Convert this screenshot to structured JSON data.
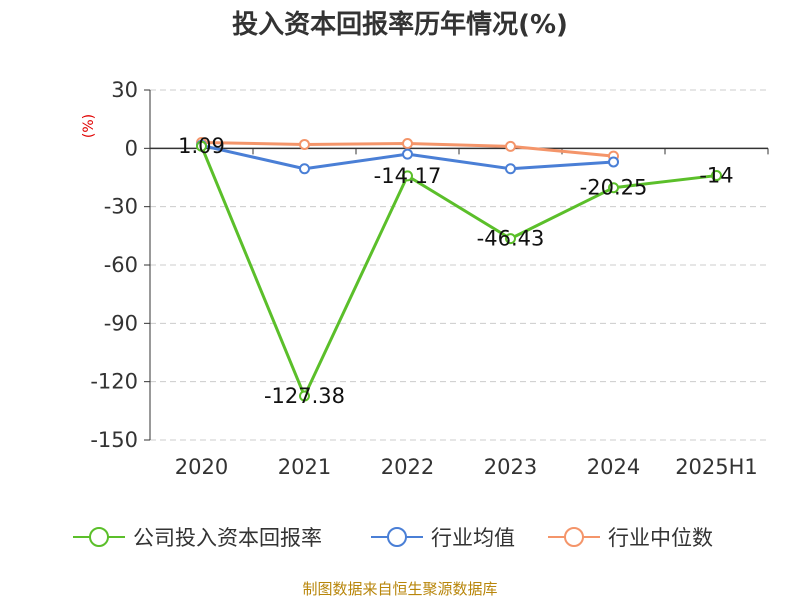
{
  "chart_data": {
    "type": "line",
    "title": "投入资本回报率历年情况(%)",
    "ylabel": "(%)",
    "categories": [
      "2020",
      "2021",
      "2022",
      "2023",
      "2024",
      "2025H1"
    ],
    "ylim": [
      -150,
      30
    ],
    "yticks": [
      30,
      0,
      -30,
      -60,
      -90,
      -120,
      -150
    ],
    "grid": true,
    "legend_position": "bottom",
    "series": [
      {
        "name": "公司投入资本回报率",
        "color": "#5bbf2a",
        "values": [
          1.09,
          -127.38,
          -14.17,
          -46.43,
          -20.25,
          -14
        ],
        "labels": [
          "1.09",
          "-127.38",
          "-14.17",
          "-46.43",
          "-20.25",
          "-14"
        ]
      },
      {
        "name": "行业均值",
        "color": "#4a7fd6",
        "values": [
          1.5,
          -10.5,
          -3,
          -10.5,
          -7,
          null
        ]
      },
      {
        "name": "行业中位数",
        "color": "#f4956a",
        "values": [
          3,
          2,
          2.5,
          1,
          -4,
          null
        ]
      }
    ]
  },
  "source": "制图数据来自恒生聚源数据库"
}
